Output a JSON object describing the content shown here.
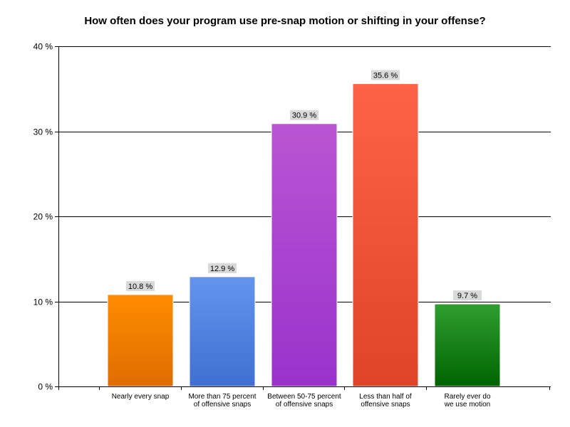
{
  "chart_data": {
    "type": "bar",
    "title": "How often does your program use pre-snap motion or shifting in your offense?",
    "xlabel": "",
    "ylabel": "",
    "ylim": [
      0,
      40
    ],
    "yticks": [
      0,
      10,
      20,
      30,
      40
    ],
    "ytick_labels": [
      "0 %",
      "10 %",
      "20 %",
      "30 %",
      "40 %"
    ],
    "grid": true,
    "categories": [
      [
        "Nearly every snap"
      ],
      [
        "More than 75 percent",
        "of offensive snaps"
      ],
      [
        "Between 50-75 percent",
        "of offensive snaps"
      ],
      [
        "Less than half of",
        "offensive snaps"
      ],
      [
        "Rarely ever do",
        "we use motion"
      ]
    ],
    "values": [
      10.8,
      12.9,
      30.9,
      35.6,
      9.7
    ],
    "data_labels": [
      "10.8 %",
      "12.9 %",
      "30.9 %",
      "35.6 %",
      "9.7 %"
    ],
    "colors": [
      [
        "#ff8c00",
        "#e06c00"
      ],
      [
        "#6495ed",
        "#3f6fd1"
      ],
      [
        "#ba55d3",
        "#9932cc"
      ],
      [
        "#ff6347",
        "#e04428"
      ],
      [
        "#2f9e2f",
        "#006400"
      ]
    ]
  }
}
